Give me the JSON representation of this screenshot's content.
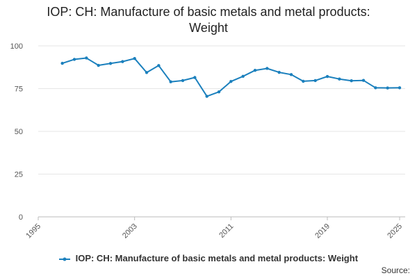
{
  "chart_data": {
    "type": "line",
    "title_lines": [
      "IOP: CH: Manufacture of basic metals and metal products:",
      "Weight"
    ],
    "xlabel": "",
    "ylabel": "",
    "x_range": [
      1995,
      2025
    ],
    "x_ticks": [
      "1995",
      "2003",
      "2011",
      "2019",
      "2025"
    ],
    "ylim": [
      0,
      100
    ],
    "y_ticks": [
      "0",
      "25",
      "50",
      "75",
      "100"
    ],
    "grid": "horizontal",
    "legend_position": "bottom",
    "series": [
      {
        "name": "IOP: CH: Manufacture of basic metals and metal products: Weight",
        "color": "#1b80bd",
        "x": [
          1997,
          1998,
          1999,
          2000,
          2001,
          2002,
          2003,
          2004,
          2005,
          2006,
          2007,
          2008,
          2009,
          2010,
          2011,
          2012,
          2013,
          2014,
          2015,
          2016,
          2017,
          2018,
          2019,
          2020,
          2021,
          2022,
          2023,
          2024,
          2025
        ],
        "values": [
          89.8,
          92.1,
          92.9,
          88.6,
          89.7,
          90.8,
          92.6,
          84.4,
          88.5,
          79.0,
          79.7,
          81.5,
          70.5,
          73.1,
          79.2,
          82.2,
          85.7,
          86.8,
          84.5,
          83.2,
          79.3,
          79.7,
          82.1,
          80.6,
          79.6,
          79.8,
          75.5,
          75.4,
          75.5
        ]
      }
    ],
    "source_label": "Source:"
  }
}
